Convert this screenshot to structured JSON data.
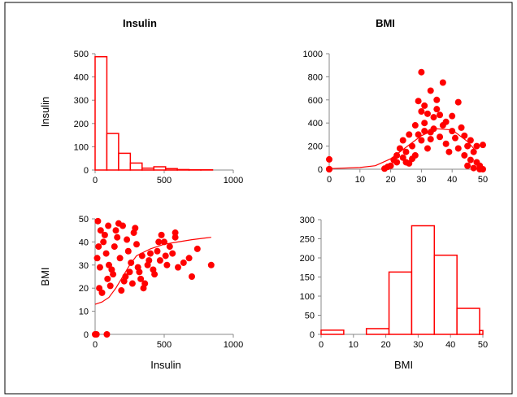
{
  "colors": {
    "accent": "#ff0000",
    "axis": "#888888",
    "frame": "#000000"
  },
  "chart_data": [
    {
      "type": "bar",
      "panel": "insulin-histogram",
      "title": "Insulin",
      "xlabel": "",
      "ylabel": "Insulin",
      "xlim": [
        0,
        1000
      ],
      "ylim": [
        0,
        500
      ],
      "xticks": [
        0,
        500,
        1000
      ],
      "yticks": [
        0,
        100,
        200,
        300,
        400,
        500
      ],
      "bins": [
        {
          "x0": 0,
          "x1": 85,
          "value": 487
        },
        {
          "x0": 85,
          "x1": 170,
          "value": 157
        },
        {
          "x0": 170,
          "x1": 255,
          "value": 72
        },
        {
          "x0": 255,
          "x1": 340,
          "value": 30
        },
        {
          "x0": 340,
          "x1": 425,
          "value": 8
        },
        {
          "x0": 425,
          "x1": 510,
          "value": 14
        },
        {
          "x0": 510,
          "x1": 595,
          "value": 6
        },
        {
          "x0": 595,
          "x1": 680,
          "value": 2
        },
        {
          "x0": 680,
          "x1": 765,
          "value": 1
        },
        {
          "x0": 765,
          "x1": 850,
          "value": 1
        }
      ],
      "grid": false
    },
    {
      "type": "scatter",
      "panel": "bmi-vs-insulin-scatter",
      "title": "BMI",
      "xlabel": "",
      "ylabel": "",
      "xlim": [
        0,
        50
      ],
      "ylim": [
        0,
        1000
      ],
      "xticks": [
        0,
        10,
        20,
        30,
        40,
        50
      ],
      "yticks": [
        0,
        200,
        400,
        600,
        800,
        1000
      ],
      "points": [
        [
          0,
          0
        ],
        [
          0,
          85
        ],
        [
          0,
          0
        ],
        [
          18,
          5
        ],
        [
          20,
          30
        ],
        [
          22,
          60
        ],
        [
          24,
          100
        ],
        [
          25,
          150
        ],
        [
          26,
          50
        ],
        [
          27,
          200
        ],
        [
          28,
          120
        ],
        [
          29,
          300
        ],
        [
          30,
          250
        ],
        [
          30,
          500
        ],
        [
          31,
          400
        ],
        [
          32,
          180
        ],
        [
          33,
          320
        ],
        [
          34,
          450
        ],
        [
          35,
          600
        ],
        [
          36,
          280
        ],
        [
          37,
          380
        ],
        [
          38,
          220
        ],
        [
          39,
          150
        ],
        [
          40,
          330
        ],
        [
          41,
          270
        ],
        [
          42,
          180
        ],
        [
          43,
          360
        ],
        [
          44,
          120
        ],
        [
          45,
          200
        ],
        [
          46,
          80
        ],
        [
          47,
          150
        ],
        [
          48,
          60
        ],
        [
          49,
          30
        ],
        [
          50,
          210
        ],
        [
          50,
          0
        ],
        [
          29,
          590
        ],
        [
          31,
          550
        ],
        [
          32,
          480
        ],
        [
          33,
          680
        ],
        [
          30,
          840
        ],
        [
          37,
          750
        ],
        [
          42,
          580
        ],
        [
          36,
          470
        ],
        [
          28,
          380
        ],
        [
          26,
          300
        ],
        [
          24,
          250
        ],
        [
          23,
          180
        ],
        [
          22,
          120
        ],
        [
          21,
          80
        ],
        [
          35,
          520
        ],
        [
          38,
          410
        ],
        [
          40,
          460
        ],
        [
          44,
          290
        ],
        [
          46,
          250
        ],
        [
          34,
          350
        ],
        [
          33,
          260
        ],
        [
          31,
          330
        ],
        [
          27,
          90
        ],
        [
          25,
          60
        ],
        [
          19,
          20
        ],
        [
          48,
          200
        ],
        [
          47,
          10
        ],
        [
          49,
          0
        ],
        [
          45,
          30
        ]
      ],
      "fit_curve": [
        [
          0,
          5
        ],
        [
          10,
          15
        ],
        [
          15,
          30
        ],
        [
          20,
          90
        ],
        [
          25,
          190
        ],
        [
          30,
          290
        ],
        [
          35,
          350
        ],
        [
          40,
          340
        ],
        [
          45,
          240
        ],
        [
          48,
          150
        ]
      ],
      "grid": false
    },
    {
      "type": "scatter",
      "panel": "insulin-vs-bmi-scatter",
      "title": "",
      "xlabel": "Insulin",
      "ylabel": "BMI",
      "xlim": [
        0,
        1000
      ],
      "ylim": [
        0,
        50
      ],
      "xticks": [
        0,
        500,
        1000
      ],
      "yticks": [
        0,
        10,
        20,
        30,
        40,
        50
      ],
      "points": [
        [
          0,
          0
        ],
        [
          85,
          0
        ],
        [
          10,
          0
        ],
        [
          20,
          49
        ],
        [
          40,
          45
        ],
        [
          60,
          40
        ],
        [
          80,
          35
        ],
        [
          100,
          30
        ],
        [
          120,
          28
        ],
        [
          140,
          38
        ],
        [
          160,
          42
        ],
        [
          180,
          33
        ],
        [
          200,
          47
        ],
        [
          220,
          25
        ],
        [
          240,
          36
        ],
        [
          260,
          31
        ],
        [
          280,
          44
        ],
        [
          300,
          39
        ],
        [
          320,
          27
        ],
        [
          340,
          34
        ],
        [
          360,
          22
        ],
        [
          380,
          30
        ],
        [
          400,
          35
        ],
        [
          420,
          28
        ],
        [
          450,
          36
        ],
        [
          470,
          32
        ],
        [
          480,
          43
        ],
        [
          500,
          40
        ],
        [
          520,
          30
        ],
        [
          540,
          38
        ],
        [
          560,
          35
        ],
        [
          580,
          42
        ],
        [
          600,
          29
        ],
        [
          640,
          31
        ],
        [
          680,
          33
        ],
        [
          700,
          25
        ],
        [
          740,
          37
        ],
        [
          840,
          30
        ],
        [
          30,
          20
        ],
        [
          50,
          18
        ],
        [
          90,
          24
        ],
        [
          110,
          21
        ],
        [
          130,
          26
        ],
        [
          150,
          45
        ],
        [
          170,
          48
        ],
        [
          190,
          19
        ],
        [
          210,
          23
        ],
        [
          230,
          41
        ],
        [
          250,
          27
        ],
        [
          270,
          22
        ],
        [
          290,
          46
        ],
        [
          310,
          29
        ],
        [
          330,
          24
        ],
        [
          350,
          20
        ],
        [
          390,
          32
        ],
        [
          430,
          26
        ],
        [
          460,
          40
        ],
        [
          580,
          44
        ],
        [
          510,
          34
        ],
        [
          15,
          33
        ],
        [
          25,
          38
        ],
        [
          35,
          29
        ],
        [
          70,
          43
        ],
        [
          95,
          47
        ]
      ],
      "fit_curve": [
        [
          0,
          13
        ],
        [
          50,
          14
        ],
        [
          100,
          16
        ],
        [
          150,
          20
        ],
        [
          200,
          25
        ],
        [
          250,
          30
        ],
        [
          300,
          34
        ],
        [
          400,
          37
        ],
        [
          500,
          39
        ],
        [
          600,
          40
        ],
        [
          700,
          41
        ],
        [
          840,
          42
        ]
      ],
      "grid": false
    },
    {
      "type": "bar",
      "panel": "bmi-histogram",
      "title": "",
      "xlabel": "BMI",
      "ylabel": "",
      "xlim": [
        0,
        50
      ],
      "ylim": [
        0,
        300
      ],
      "xticks": [
        0,
        10,
        20,
        30,
        40,
        50
      ],
      "yticks": [
        0,
        50,
        100,
        150,
        200,
        250,
        300
      ],
      "bins": [
        {
          "x0": 0,
          "x1": 7,
          "value": 11
        },
        {
          "x0": 7,
          "x1": 14,
          "value": 0
        },
        {
          "x0": 14,
          "x1": 21,
          "value": 15
        },
        {
          "x0": 21,
          "x1": 28,
          "value": 163
        },
        {
          "x0": 28,
          "x1": 35,
          "value": 284
        },
        {
          "x0": 35,
          "x1": 42,
          "value": 207
        },
        {
          "x0": 42,
          "x1": 49,
          "value": 68
        },
        {
          "x0": 49,
          "x1": 50,
          "value": 10
        }
      ],
      "grid": false
    }
  ]
}
